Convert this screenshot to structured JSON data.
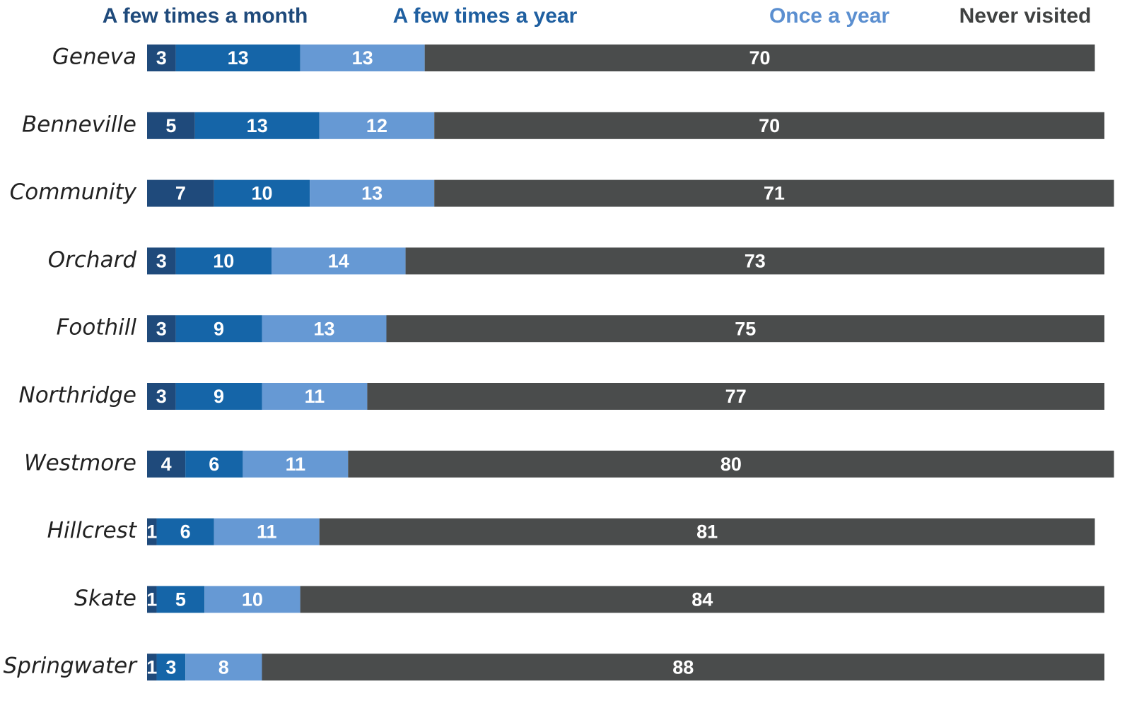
{
  "chart_data": {
    "type": "stacked-bar-horizontal",
    "categories": [
      "Geneva",
      "Benneville",
      "Community",
      "Orchard",
      "Foothill",
      "Northridge",
      "Westmore",
      "Hillcrest",
      "Skate",
      "Springwater"
    ],
    "series": [
      {
        "name": "A few times a month",
        "color": "#1f4a7b",
        "values": [
          3,
          5,
          7,
          3,
          3,
          3,
          4,
          1,
          1,
          1
        ]
      },
      {
        "name": "A few times a year",
        "color": "#1565a8",
        "values": [
          13,
          13,
          10,
          10,
          9,
          9,
          6,
          6,
          5,
          3
        ]
      },
      {
        "name": "Once a year",
        "color": "#6699d4",
        "values": [
          13,
          12,
          13,
          14,
          13,
          11,
          11,
          11,
          10,
          8
        ]
      },
      {
        "name": "Never visited",
        "color": "#4a4c4c",
        "values": [
          70,
          70,
          71,
          73,
          75,
          77,
          80,
          81,
          84,
          88
        ]
      }
    ],
    "legend_colors": [
      "#1f4a7b",
      "#1f5fa0",
      "#5b8fd0",
      "#404242"
    ],
    "xlim": [
      0,
      100
    ]
  }
}
